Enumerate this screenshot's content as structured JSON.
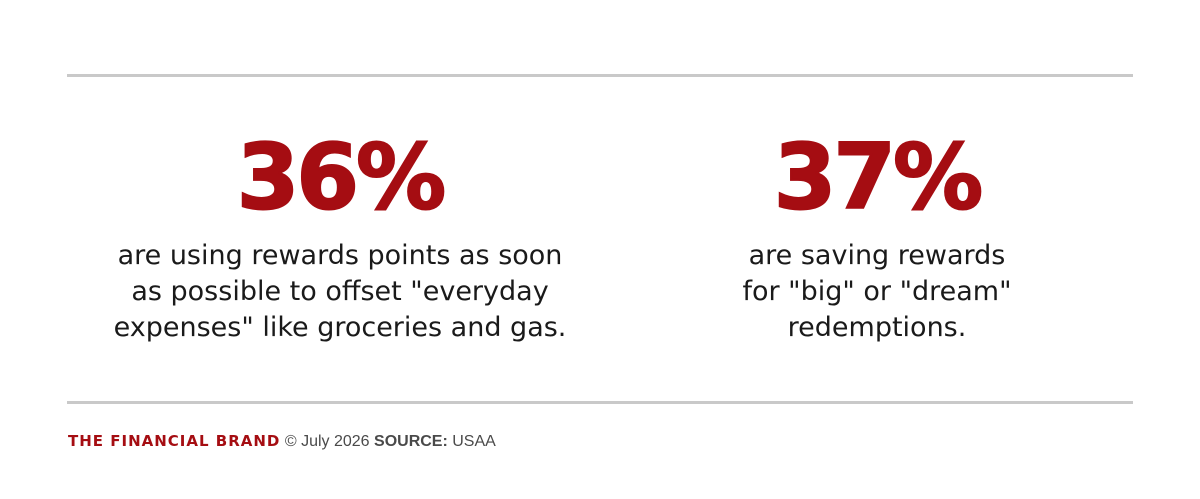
{
  "stats": [
    {
      "value": "36%",
      "description": "are using rewards points as soon\nas possible to offset \"everyday\nexpenses\" like groceries and gas."
    },
    {
      "value": "37%",
      "description": "are saving rewards\nfor \"big\" or \"dream\"\nredemptions."
    }
  ],
  "footer": {
    "brand": "THE FINANCIAL BRAND",
    "copyright": "© July 2026",
    "source_label": "SOURCE:",
    "source": "USAA"
  },
  "colors": {
    "accent": "#a50d12",
    "rule": "#c9c9c9",
    "text": "#1a1a1a"
  }
}
